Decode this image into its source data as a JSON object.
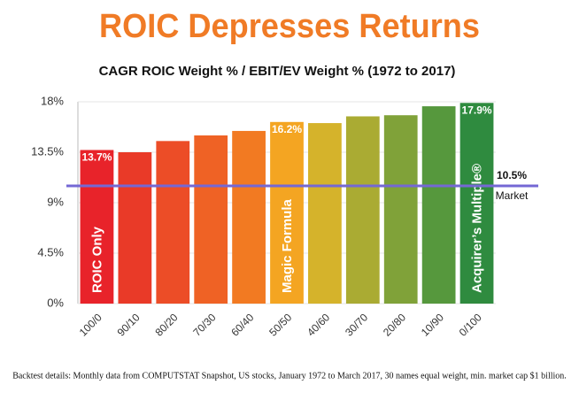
{
  "chart_data": {
    "type": "bar",
    "title": "ROIC Depresses Returns",
    "subtitle": "CAGR ROIC Weight % / EBIT/EV Weight % (1972 to 2017)",
    "footnote": "Backtest details: Monthly data from COMPUTSTAT Snapshot, US stocks, January 1972 to March 2017, 30 names equal weight, min. market cap $1 billion.",
    "categories": [
      "100/0",
      "90/10",
      "80/20",
      "70/30",
      "60/40",
      "50/50",
      "40/60",
      "30/70",
      "20/80",
      "10/90",
      "0/100"
    ],
    "values": [
      13.7,
      13.5,
      14.5,
      15.0,
      15.4,
      16.2,
      16.1,
      16.7,
      16.8,
      17.6,
      17.9
    ],
    "value_labels": [
      "13.7%",
      null,
      null,
      null,
      null,
      "16.2%",
      null,
      null,
      null,
      null,
      "17.9%"
    ],
    "bar_labels": [
      "ROIC Only",
      null,
      null,
      null,
      null,
      "Magic Formula",
      null,
      null,
      null,
      null,
      "Acquirer’s Multiple®"
    ],
    "colors": [
      "#e8232a",
      "#e93a28",
      "#ec4d27",
      "#ef6225",
      "#f27a22",
      "#f4a522",
      "#d5b32b",
      "#aaab33",
      "#80a239",
      "#56983d",
      "#2f8b3f"
    ],
    "reference_line": {
      "value": 10.5,
      "label": "10.5%",
      "name": "Market",
      "color": "#7468d4"
    },
    "ylim": [
      0,
      18
    ],
    "yticks": [
      {
        "value": 0,
        "label": "0%"
      },
      {
        "value": 4.5,
        "label": "4.5%"
      },
      {
        "value": 9,
        "label": "9%"
      },
      {
        "value": 13.5,
        "label": "13.5%"
      },
      {
        "value": 18,
        "label": "18%"
      }
    ],
    "grid": true
  }
}
